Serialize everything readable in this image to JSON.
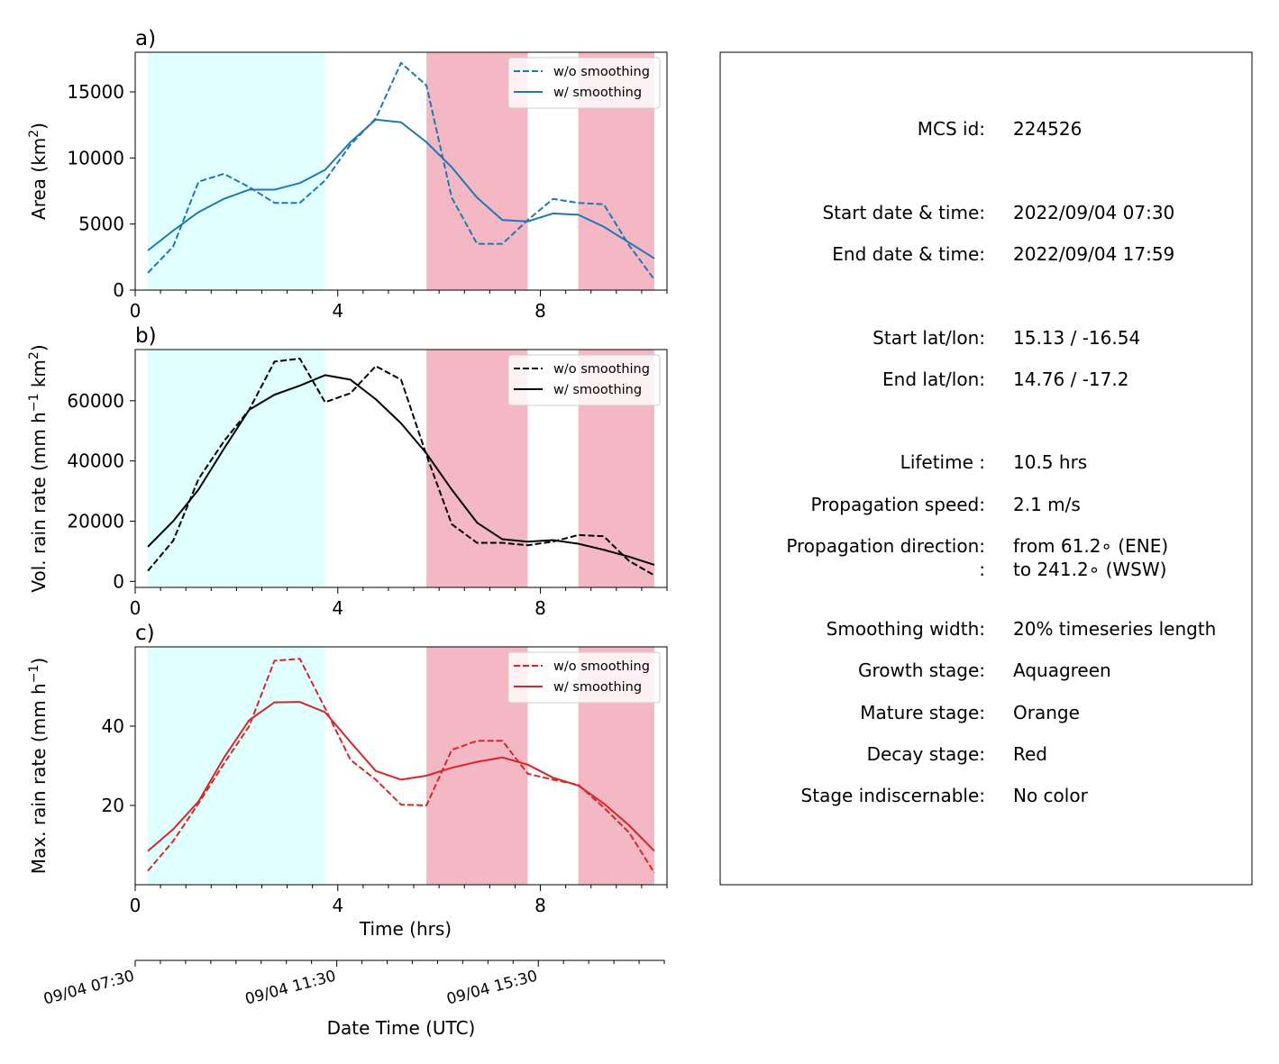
{
  "chart_data": [
    {
      "panel_label": "a)",
      "type": "line",
      "ylabel": "Area  (km",
      "ylabel_sup": "2",
      "ylabel_end": ")",
      "xlabel": "",
      "xlim": [
        0,
        10.5
      ],
      "ylim": [
        0,
        18000
      ],
      "yticks": [
        0,
        5000,
        10000,
        15000
      ],
      "xticks": [
        0,
        4,
        8
      ],
      "color": "#1f77b4",
      "legend_position": "top-right",
      "x": [
        0.25,
        0.75,
        1.25,
        1.75,
        2.25,
        2.75,
        3.25,
        3.75,
        4.25,
        4.75,
        5.25,
        5.75,
        6.25,
        6.75,
        7.25,
        7.75,
        8.25,
        8.75,
        9.25,
        9.75,
        10.25
      ],
      "series": [
        {
          "name": "w/o smoothing",
          "style": "dashed",
          "values": [
            1300,
            3300,
            8200,
            8800,
            7800,
            6600,
            6600,
            8300,
            11000,
            13000,
            17200,
            15500,
            7000,
            3500,
            3500,
            5300,
            6900,
            6600,
            6500,
            3400,
            800
          ]
        },
        {
          "name": "w/ smoothing",
          "style": "solid",
          "values": [
            3000,
            4500,
            5900,
            6900,
            7600,
            7600,
            8100,
            9100,
            11200,
            12900,
            12700,
            11200,
            9300,
            7000,
            5300,
            5200,
            5800,
            5700,
            4800,
            3600,
            2400
          ]
        }
      ]
    },
    {
      "panel_label": "b)",
      "type": "line",
      "ylabel": "Vol. rain rate (mm h",
      "ylabel_sup": "−1",
      "ylabel_mid": " km",
      "ylabel_sup2": "2",
      "ylabel_end": ")",
      "xlabel": "",
      "xlim": [
        0,
        10.5
      ],
      "ylim": [
        -2000,
        77000
      ],
      "yticks": [
        0,
        20000,
        40000,
        60000
      ],
      "xticks": [
        0,
        4,
        8
      ],
      "color": "#000000",
      "legend_position": "top-right",
      "x": [
        0.25,
        0.75,
        1.25,
        1.75,
        2.25,
        2.75,
        3.25,
        3.75,
        4.25,
        4.75,
        5.25,
        5.75,
        6.25,
        6.75,
        7.25,
        7.75,
        8.25,
        8.75,
        9.25,
        9.75,
        10.25
      ],
      "series": [
        {
          "name": "w/o smoothing",
          "style": "dashed",
          "values": [
            3500,
            13500,
            34000,
            46500,
            57000,
            73000,
            74000,
            59500,
            62500,
            71500,
            67000,
            42000,
            19000,
            12800,
            12800,
            12000,
            13200,
            15400,
            15000,
            6800,
            2000
          ]
        },
        {
          "name": "w/ smoothing",
          "style": "solid",
          "values": [
            11500,
            20000,
            30500,
            44000,
            57000,
            62000,
            65000,
            68500,
            67000,
            60500,
            52500,
            42500,
            30500,
            19500,
            14000,
            13200,
            13700,
            12500,
            10500,
            8200,
            5500
          ]
        }
      ]
    },
    {
      "panel_label": "c)",
      "type": "line",
      "ylabel": "Max. rain rate  (mm h",
      "ylabel_sup": "−1",
      "ylabel_end": ")",
      "xlabel": "Time (hrs)",
      "xlim": [
        0,
        10.5
      ],
      "ylim": [
        0,
        60
      ],
      "yticks": [
        20,
        40
      ],
      "xticks": [
        0,
        4,
        8
      ],
      "color": "#d62728",
      "legend_position": "top-right",
      "x": [
        0.25,
        0.75,
        1.25,
        1.75,
        2.25,
        2.75,
        3.25,
        3.75,
        4.25,
        4.75,
        5.25,
        5.75,
        6.25,
        6.75,
        7.25,
        7.75,
        8.25,
        8.75,
        9.25,
        9.75,
        10.25
      ],
      "series": [
        {
          "name": "w/o smoothing",
          "style": "dashed",
          "values": [
            3.5,
            11,
            20.5,
            30.5,
            40,
            56.5,
            57,
            44.5,
            31.5,
            26.5,
            20.2,
            20,
            34,
            36.3,
            36.3,
            28,
            26.5,
            25.2,
            19.5,
            13.2,
            3
          ]
        },
        {
          "name": "w/ smoothing",
          "style": "solid",
          "values": [
            8.5,
            14,
            21,
            32,
            41.5,
            46,
            46.1,
            43.5,
            36,
            28.7,
            26.5,
            27.5,
            29.5,
            31,
            32.1,
            30.3,
            27,
            25,
            20.5,
            15,
            8.5
          ]
        }
      ]
    }
  ],
  "stages": [
    {
      "stage": "growth",
      "color": "#e0ffff",
      "x_start": 0.25,
      "x_end": 3.75
    },
    {
      "stage": "decay",
      "color": "#f4b8c4",
      "x_start": 5.75,
      "x_end": 7.75
    },
    {
      "stage": "decay",
      "color": "#f4b8c4",
      "x_start": 8.75,
      "x_end": 10.25
    }
  ],
  "datetime_axis": {
    "label": "Date Time (UTC)",
    "ticks": [
      {
        "hours": 0,
        "label": "09/04 07:30"
      },
      {
        "hours": 4,
        "label": "09/04 11:30"
      },
      {
        "hours": 8,
        "label": "09/04 15:30"
      }
    ]
  },
  "info": {
    "rows": [
      {
        "key": "MCS id:",
        "value": "224526"
      },
      {
        "key": "Start date & time:",
        "value": "2022/09/04 07:30"
      },
      {
        "key": "End date & time:",
        "value": "2022/09/04 17:59"
      },
      {
        "key": "Start lat/lon:",
        "value": "15.13 / -16.54"
      },
      {
        "key": "End lat/lon:",
        "value": "14.76 / -17.2"
      },
      {
        "key": "Lifetime :",
        "value": "10.5 hrs"
      },
      {
        "key": "Propagation speed:",
        "value": "2.1 m/s"
      },
      {
        "key": "Propagation direction:",
        "value": "from  61.2∘ (ENE)"
      },
      {
        "key": ":",
        "value": "to   241.2∘ (WSW)"
      },
      {
        "key": "Smoothing width:",
        "value": "20% timeseries length"
      },
      {
        "key": "Growth stage:",
        "value": "Aquagreen"
      },
      {
        "key": "Mature stage:",
        "value": "Orange"
      },
      {
        "key": "Decay stage:",
        "value": "Red"
      },
      {
        "key": "Stage indiscernable:",
        "value": "No color"
      }
    ]
  }
}
